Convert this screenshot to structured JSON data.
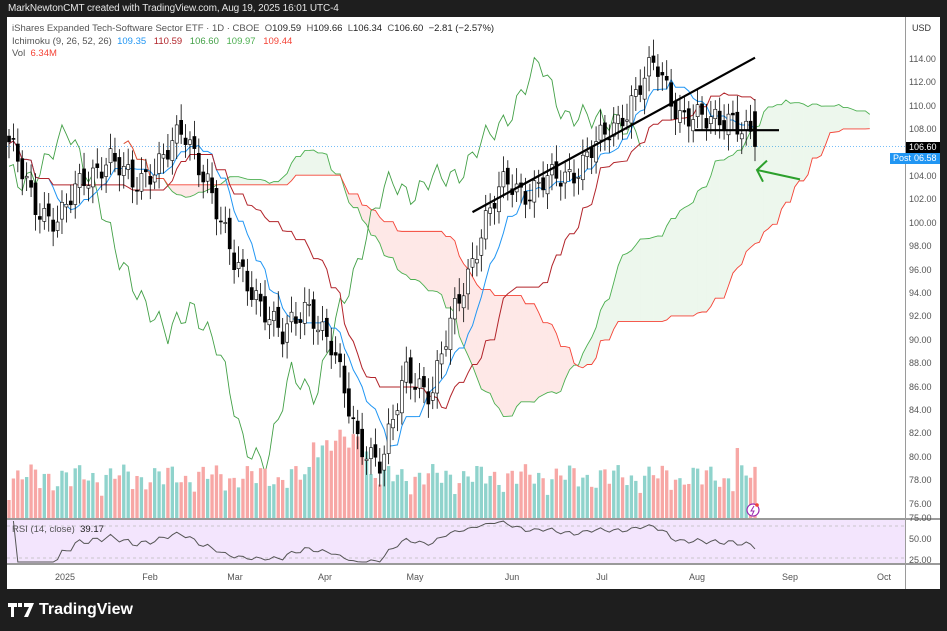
{
  "credit": "MarkNewtonCMT created with TradingView.com, Aug 19, 2025 16:01 UTC-4",
  "legend": {
    "title": "iShares Expanded Tech-Software Sector ETF · 1D · CBOE",
    "ohlc": {
      "o_label": "O",
      "o": "109.59",
      "h_label": "H",
      "h": "109.66",
      "l_label": "L",
      "l": "106.34",
      "c_label": "C",
      "c": "106.60",
      "change": "−2.81 (−2.57%)"
    },
    "ichimoku_label": "Ichimoku (9, 26, 52, 26)",
    "ichimoku_values": [
      {
        "value": "109.35",
        "color": "#2196f3"
      },
      {
        "value": "110.59",
        "color": "#b2242a"
      },
      {
        "value": "106.60",
        "color": "#43a047"
      },
      {
        "value": "109.97",
        "color": "#4caf50"
      },
      {
        "value": "109.44",
        "color": "#f44336"
      }
    ],
    "vol_label": "Vol",
    "vol_value": "6.34M"
  },
  "price_axis": {
    "currency": "USD",
    "ticks": [
      "114.00",
      "112.00",
      "110.00",
      "108.00",
      "104.00",
      "102.00",
      "100.00",
      "98.00",
      "96.00",
      "94.00",
      "92.00",
      "90.00",
      "88.00",
      "86.00",
      "84.00",
      "82.00",
      "80.00",
      "78.00",
      "76.00"
    ],
    "last_price": "106.60",
    "post_label": "Post",
    "post_price": "106.58"
  },
  "rsi": {
    "label": "RSI (14, close)",
    "value": "39.17",
    "ticks": [
      "75.00",
      "50.00",
      "25.00"
    ]
  },
  "time_axis": [
    "2025",
    "Feb",
    "Mar",
    "Apr",
    "May",
    "Jun",
    "Jul",
    "Aug",
    "Sep",
    "Oct"
  ],
  "footer": {
    "brand": "TradingView"
  },
  "colors": {
    "up_candle": "#ffffff",
    "down_candle": "#000000",
    "tenkan": "#2196f3",
    "kijun": "#b2242a",
    "chikou": "#43a047",
    "span_a": "#4caf50",
    "span_b": "#f44336",
    "vol_up": "#8fd3cc",
    "vol_down": "#f7a7a5",
    "rsi_line": "#555",
    "rsi_bg": "#f3e5fd",
    "arrow": "#2ca02c"
  },
  "chart_data": {
    "type": "candlestick",
    "title": "iShares Expanded Tech-Software Sector ETF · 1D · CBOE",
    "x_range": [
      "2024-12-16",
      "2025-10-10"
    ],
    "ylim": [
      75,
      116
    ],
    "ylabel": "USD",
    "last": {
      "open": 109.59,
      "high": 109.66,
      "low": 106.34,
      "close": 106.6,
      "change": -2.81,
      "change_pct": -2.57
    },
    "approx_close_path": [
      {
        "x": "2024-12-16",
        "y": 107.0
      },
      {
        "x": "2025-01-02",
        "y": 101.5
      },
      {
        "x": "2025-01-10",
        "y": 100.5
      },
      {
        "x": "2025-01-17",
        "y": 103.5
      },
      {
        "x": "2025-01-24",
        "y": 106.0
      },
      {
        "x": "2025-02-03",
        "y": 103.0
      },
      {
        "x": "2025-02-10",
        "y": 105.5
      },
      {
        "x": "2025-02-18",
        "y": 107.5
      },
      {
        "x": "2025-02-21",
        "y": 104.0
      },
      {
        "x": "2025-02-28",
        "y": 96.5
      },
      {
        "x": "2025-03-07",
        "y": 94.0
      },
      {
        "x": "2025-03-13",
        "y": 90.0
      },
      {
        "x": "2025-03-21",
        "y": 93.5
      },
      {
        "x": "2025-03-28",
        "y": 89.0
      },
      {
        "x": "2025-04-04",
        "y": 82.0
      },
      {
        "x": "2025-04-08",
        "y": 79.0
      },
      {
        "x": "2025-04-09",
        "y": 88.0
      },
      {
        "x": "2025-04-21",
        "y": 85.0
      },
      {
        "x": "2025-05-02",
        "y": 93.5
      },
      {
        "x": "2025-05-12",
        "y": 99.0
      },
      {
        "x": "2025-05-14",
        "y": 104.0
      },
      {
        "x": "2025-05-23",
        "y": 102.5
      },
      {
        "x": "2025-06-06",
        "y": 104.0
      },
      {
        "x": "2025-06-20",
        "y": 105.0
      },
      {
        "x": "2025-07-03",
        "y": 107.5
      },
      {
        "x": "2025-07-18",
        "y": 110.5
      },
      {
        "x": "2025-07-28",
        "y": 113.5
      },
      {
        "x": "2025-08-01",
        "y": 109.5
      },
      {
        "x": "2025-08-08",
        "y": 108.5
      },
      {
        "x": "2025-08-15",
        "y": 109.5
      },
      {
        "x": "2025-08-19",
        "y": 106.6
      }
    ],
    "indicators": {
      "ichimoku": {
        "params": [
          9,
          26,
          52,
          26
        ],
        "tenkan": 109.35,
        "kijun": 110.59,
        "chikou": 106.6,
        "span_a": 109.97,
        "span_b": 109.44
      },
      "volume_last": "6.34M",
      "rsi": {
        "period": 14,
        "source": "close",
        "last": 39.17,
        "levels": [
          75,
          50,
          25
        ]
      }
    },
    "annotations": [
      {
        "type": "trendline",
        "desc": "rising support line from late May to early August, broken in August"
      },
      {
        "type": "horizontal",
        "desc": "support near 108.00 in August, broken on last candle"
      },
      {
        "type": "arrow",
        "desc": "green arrow pointing at Ichimoku cloud top near 104.5"
      }
    ],
    "time_ticks": [
      "2025",
      "Feb",
      "Mar",
      "Apr",
      "May",
      "Jun",
      "Jul",
      "Aug",
      "Sep",
      "Oct"
    ]
  }
}
